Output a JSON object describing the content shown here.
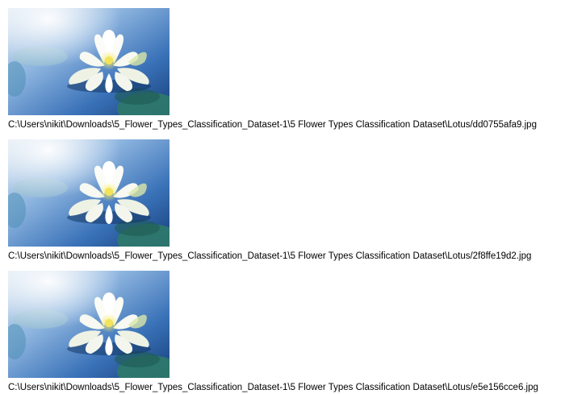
{
  "files": [
    {
      "path": "C:\\Users\\nikit\\Downloads\\5_Flower_Types_Classification_Dataset-1\\5 Flower Types Classification Dataset\\Lotus/dd0755afa9.jpg",
      "image_subject": "white-lotus-flower-on-blue-water"
    },
    {
      "path": "C:\\Users\\nikit\\Downloads\\5_Flower_Types_Classification_Dataset-1\\5 Flower Types Classification Dataset\\Lotus/2f8ffe19d2.jpg",
      "image_subject": "white-lotus-flower-on-blue-water"
    },
    {
      "path": "C:\\Users\\nikit\\Downloads\\5_Flower_Types_Classification_Dataset-1\\5 Flower Types Classification Dataset\\Lotus/e5e156cce6.jpg",
      "image_subject": "white-lotus-flower-on-blue-water"
    }
  ],
  "colors": {
    "water_dark": "#1e4f8f",
    "water_light": "#8fb6e0",
    "petal": "#f7f9f2",
    "petal_center": "#f2e35c",
    "leaf": "#2f7a6a"
  }
}
